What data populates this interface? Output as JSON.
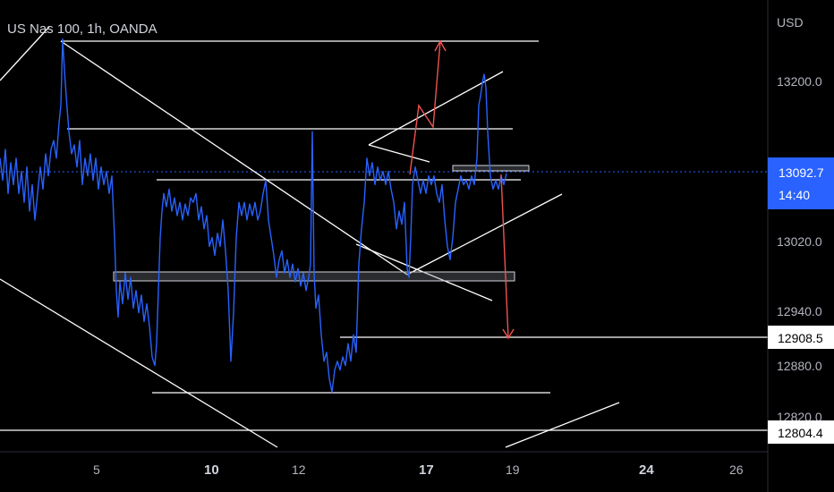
{
  "header": {
    "title": "US Nas 100, 1h, OANDA"
  },
  "colors": {
    "background": "#000000",
    "price_line": "#2962ff",
    "drawing": "#ffffff",
    "projection": "#ef5350",
    "current_tag": "#2962ff",
    "axis_text": "#b2b5be"
  },
  "chart_data": {
    "type": "line",
    "symbol": "US Nas 100",
    "timeframe": "1h",
    "source": "OANDA",
    "currency_label": "USD",
    "x_ticks": [
      "5",
      "10",
      "12",
      "17",
      "19",
      "24",
      "26"
    ],
    "y_ticks": [
      "13200.0",
      "13020.0",
      "12940.0",
      "12880.0",
      "12820.0"
    ],
    "ylim": [
      12790,
      13270
    ],
    "current_price": {
      "value": "13092.7",
      "countdown": "14:40"
    },
    "level_tags": [
      "12908.5",
      "12804.4"
    ],
    "series": [
      {
        "values": [
          [
            0,
            13110
          ],
          [
            3,
            13085
          ],
          [
            6,
            13120
          ],
          [
            9,
            13070
          ],
          [
            12,
            13105
          ],
          [
            15,
            13080
          ],
          [
            18,
            13110
          ],
          [
            21,
            13070
          ],
          [
            24,
            13095
          ],
          [
            27,
            13060
          ],
          [
            30,
            13100
          ],
          [
            33,
            13050
          ],
          [
            36,
            13080
          ],
          [
            39,
            13040
          ],
          [
            42,
            13070
          ],
          [
            45,
            13100
          ],
          [
            48,
            13075
          ],
          [
            51,
            13115
          ],
          [
            54,
            13090
          ],
          [
            57,
            13120
          ],
          [
            60,
            13130
          ],
          [
            63,
            13110
          ],
          [
            66,
            13150
          ],
          [
            68,
            13170
          ],
          [
            70,
            13245
          ],
          [
            72,
            13210
          ],
          [
            74,
            13180
          ],
          [
            77,
            13140
          ],
          [
            80,
            13115
          ],
          [
            83,
            13125
          ],
          [
            86,
            13100
          ],
          [
            89,
            13130
          ],
          [
            92,
            13080
          ],
          [
            95,
            13110
          ],
          [
            98,
            13090
          ],
          [
            101,
            13115
          ],
          [
            104,
            13085
          ],
          [
            107,
            13110
          ],
          [
            110,
            13075
          ],
          [
            113,
            13100
          ],
          [
            116,
            13080
          ],
          [
            119,
            13095
          ],
          [
            122,
            13070
          ],
          [
            125,
            13090
          ],
          [
            128,
            13020
          ],
          [
            130,
            12960
          ],
          [
            132,
            12930
          ],
          [
            134,
            12970
          ],
          [
            137,
            12945
          ],
          [
            140,
            12980
          ],
          [
            143,
            12950
          ],
          [
            146,
            12975
          ],
          [
            149,
            12940
          ],
          [
            152,
            12960
          ],
          [
            155,
            12935
          ],
          [
            158,
            12955
          ],
          [
            161,
            12925
          ],
          [
            164,
            12945
          ],
          [
            167,
            12920
          ],
          [
            170,
            12885
          ],
          [
            173,
            12875
          ],
          [
            175,
            12900
          ],
          [
            177,
            12960
          ],
          [
            179,
            13020
          ],
          [
            181,
            13050
          ],
          [
            183,
            13070
          ],
          [
            186,
            13055
          ],
          [
            189,
            13075
          ],
          [
            192,
            13050
          ],
          [
            195,
            13065
          ],
          [
            198,
            13045
          ],
          [
            201,
            13060
          ],
          [
            204,
            13040
          ],
          [
            207,
            13058
          ],
          [
            210,
            13045
          ],
          [
            213,
            13065
          ],
          [
            216,
            13060
          ],
          [
            219,
            13070
          ],
          [
            222,
            13040
          ],
          [
            225,
            13055
          ],
          [
            228,
            13030
          ],
          [
            231,
            13045
          ],
          [
            234,
            13010
          ],
          [
            237,
            13020
          ],
          [
            240,
            13000
          ],
          [
            243,
            13025
          ],
          [
            246,
            13010
          ],
          [
            249,
            13040
          ],
          [
            252,
            13005
          ],
          [
            255,
            12960
          ],
          [
            258,
            12880
          ],
          [
            261,
            12935
          ],
          [
            264,
            13020
          ],
          [
            267,
            13060
          ],
          [
            270,
            13045
          ],
          [
            273,
            13060
          ],
          [
            276,
            13040
          ],
          [
            279,
            13058
          ],
          [
            282,
            13045
          ],
          [
            285,
            13060
          ],
          [
            288,
            13040
          ],
          [
            291,
            13050
          ],
          [
            294,
            13070
          ],
          [
            297,
            13085
          ],
          [
            300,
            13040
          ],
          [
            303,
            13020
          ],
          [
            306,
            13000
          ],
          [
            309,
            12975
          ],
          [
            312,
            12995
          ],
          [
            315,
            13005
          ],
          [
            318,
            12980
          ],
          [
            321,
            12995
          ],
          [
            324,
            12975
          ],
          [
            327,
            12990
          ],
          [
            330,
            12970
          ],
          [
            333,
            12985
          ],
          [
            336,
            12965
          ],
          [
            339,
            12980
          ],
          [
            342,
            12960
          ],
          [
            345,
            12975
          ],
          [
            347,
            12990
          ],
          [
            349,
            13140
          ],
          [
            351,
            12980
          ],
          [
            353,
            12940
          ],
          [
            356,
            12955
          ],
          [
            359,
            12910
          ],
          [
            362,
            12880
          ],
          [
            365,
            12890
          ],
          [
            368,
            12860
          ],
          [
            371,
            12845
          ],
          [
            374,
            12870
          ],
          [
            377,
            12880
          ],
          [
            380,
            12870
          ],
          [
            383,
            12885
          ],
          [
            386,
            12875
          ],
          [
            389,
            12900
          ],
          [
            392,
            12880
          ],
          [
            395,
            12910
          ],
          [
            398,
            12890
          ],
          [
            401,
            12990
          ],
          [
            404,
            13030
          ],
          [
            407,
            13060
          ],
          [
            410,
            13110
          ],
          [
            413,
            13090
          ],
          [
            416,
            13105
          ],
          [
            419,
            13080
          ],
          [
            422,
            13100
          ],
          [
            425,
            13085
          ],
          [
            428,
            13095
          ],
          [
            431,
            13080
          ],
          [
            434,
            13095
          ],
          [
            437,
            13075
          ],
          [
            440,
            13060
          ],
          [
            443,
            13030
          ],
          [
            446,
            13050
          ],
          [
            449,
            13035
          ],
          [
            452,
            13060
          ],
          [
            455,
            12985
          ],
          [
            457,
            12975
          ],
          [
            459,
            13020
          ],
          [
            461,
            13080
          ],
          [
            464,
            13100
          ],
          [
            467,
            13085
          ],
          [
            470,
            13070
          ],
          [
            473,
            13085
          ],
          [
            476,
            13070
          ],
          [
            479,
            13090
          ],
          [
            482,
            13080
          ],
          [
            485,
            13090
          ],
          [
            488,
            13070
          ],
          [
            491,
            13060
          ],
          [
            494,
            13080
          ],
          [
            497,
            13040
          ],
          [
            500,
            13010
          ],
          [
            503,
            12995
          ],
          [
            506,
            13020
          ],
          [
            509,
            13060
          ],
          [
            512,
            13075
          ],
          [
            515,
            13090
          ],
          [
            518,
            13080
          ],
          [
            521,
            13085
          ],
          [
            524,
            13075
          ],
          [
            527,
            13090
          ],
          [
            530,
            13080
          ],
          [
            533,
            13110
          ],
          [
            535,
            13170
          ],
          [
            537,
            13180
          ],
          [
            539,
            13195
          ],
          [
            541,
            13205
          ],
          [
            543,
            13190
          ],
          [
            545,
            13140
          ],
          [
            548,
            13090
          ],
          [
            551,
            13075
          ],
          [
            554,
            13085
          ],
          [
            557,
            13075
          ],
          [
            560,
            13090
          ],
          [
            563,
            13080
          ],
          [
            566,
            13092.7
          ]
        ]
      }
    ]
  }
}
